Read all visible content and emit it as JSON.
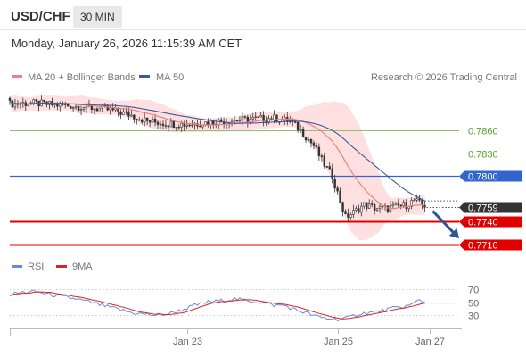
{
  "header": {
    "symbol": "USD/CHF",
    "timeframe": "30 MIN",
    "datetime": "Monday, January 26, 2026 11:15:39 AM CET"
  },
  "colors": {
    "candle": "#333333",
    "ma20": "#f08080",
    "bollinger_fill": "#fdd5d5",
    "ma50": "#3d5a99",
    "support": "#e00000",
    "resistance_green": "#8fbf70",
    "pivot_blue": "#3366cc",
    "arrow": "#2f5597",
    "rsi": "#6688dd",
    "rsi_ma": "#dd2222"
  },
  "chart_data": [
    {
      "type": "candlestick",
      "legend": [
        {
          "name": "MA 20 + Bollinger Bands",
          "color": "#f08080",
          "icon": "line-swatch"
        },
        {
          "name": "MA 50",
          "color": "#3d5a99",
          "icon": "line-swatch"
        }
      ],
      "credit": "Research © 2026 Trading Central",
      "ylim": [
        0.7697,
        0.792
      ],
      "x_ticks": [
        {
          "label": "Jan 23",
          "index": 67
        },
        {
          "label": "Jan 25",
          "index": 124
        },
        {
          "label": "Jan 27",
          "index": 159
        }
      ],
      "close_anchors": [
        [
          0,
          0.7895
        ],
        [
          8,
          0.7896
        ],
        [
          16,
          0.7894
        ],
        [
          24,
          0.7892
        ],
        [
          30,
          0.789
        ],
        [
          38,
          0.7887
        ],
        [
          46,
          0.788
        ],
        [
          52,
          0.7872
        ],
        [
          60,
          0.7869
        ],
        [
          68,
          0.7868
        ],
        [
          76,
          0.7871
        ],
        [
          84,
          0.7873
        ],
        [
          92,
          0.7875
        ],
        [
          100,
          0.7876
        ],
        [
          106,
          0.7872
        ],
        [
          110,
          0.786
        ],
        [
          115,
          0.784
        ],
        [
          119,
          0.7815
        ],
        [
          122,
          0.78
        ],
        [
          124,
          0.7778
        ],
        [
          127,
          0.7746
        ],
        [
          130,
          0.7752
        ],
        [
          134,
          0.7762
        ],
        [
          138,
          0.7758
        ],
        [
          142,
          0.7757
        ],
        [
          146,
          0.776
        ],
        [
          150,
          0.7762
        ],
        [
          153,
          0.7768
        ],
        [
          155,
          0.7764
        ],
        [
          157,
          0.7759
        ]
      ],
      "levels": [
        {
          "value": 0.786,
          "label": "0.7860",
          "kind": "resistance-minor"
        },
        {
          "value": 0.783,
          "label": "0.7830",
          "kind": "resistance-minor"
        },
        {
          "value": 0.78,
          "label": "0.7800",
          "kind": "pivot"
        },
        {
          "value": 0.7759,
          "label": "0.7759",
          "kind": "last-price"
        },
        {
          "value": 0.774,
          "label": "0.7740",
          "kind": "support"
        },
        {
          "value": 0.771,
          "label": "0.7710",
          "kind": "support"
        }
      ],
      "target_arrow": {
        "from_index": 160,
        "from_value": 0.7754,
        "to_index": 170,
        "to_value": 0.7718
      }
    },
    {
      "type": "line",
      "legend": [
        {
          "name": "RSI",
          "color": "#6688dd"
        },
        {
          "name": "9MA",
          "color": "#dd2222"
        }
      ],
      "ylim": [
        18,
        78
      ],
      "y_ticks": [
        {
          "label": "70",
          "value": 70
        },
        {
          "label": "50",
          "value": 50
        },
        {
          "label": "30",
          "value": 30
        }
      ],
      "rsi_anchors": [
        [
          0,
          62
        ],
        [
          5,
          65
        ],
        [
          10,
          66
        ],
        [
          15,
          62
        ],
        [
          20,
          58
        ],
        [
          25,
          55
        ],
        [
          30,
          50
        ],
        [
          36,
          44
        ],
        [
          42,
          38
        ],
        [
          46,
          34
        ],
        [
          50,
          32
        ],
        [
          55,
          30
        ],
        [
          60,
          32
        ],
        [
          65,
          38
        ],
        [
          70,
          45
        ],
        [
          75,
          50
        ],
        [
          80,
          52
        ],
        [
          85,
          55
        ],
        [
          90,
          52
        ],
        [
          95,
          50
        ],
        [
          100,
          45
        ],
        [
          104,
          45
        ],
        [
          108,
          38
        ],
        [
          112,
          34
        ],
        [
          116,
          28
        ],
        [
          120,
          25
        ],
        [
          124,
          24
        ],
        [
          128,
          26
        ],
        [
          132,
          32
        ],
        [
          136,
          34
        ],
        [
          140,
          36
        ],
        [
          144,
          40
        ],
        [
          148,
          42
        ],
        [
          152,
          46
        ],
        [
          155,
          54
        ],
        [
          157,
          50
        ],
        [
          159,
          47
        ]
      ]
    }
  ]
}
